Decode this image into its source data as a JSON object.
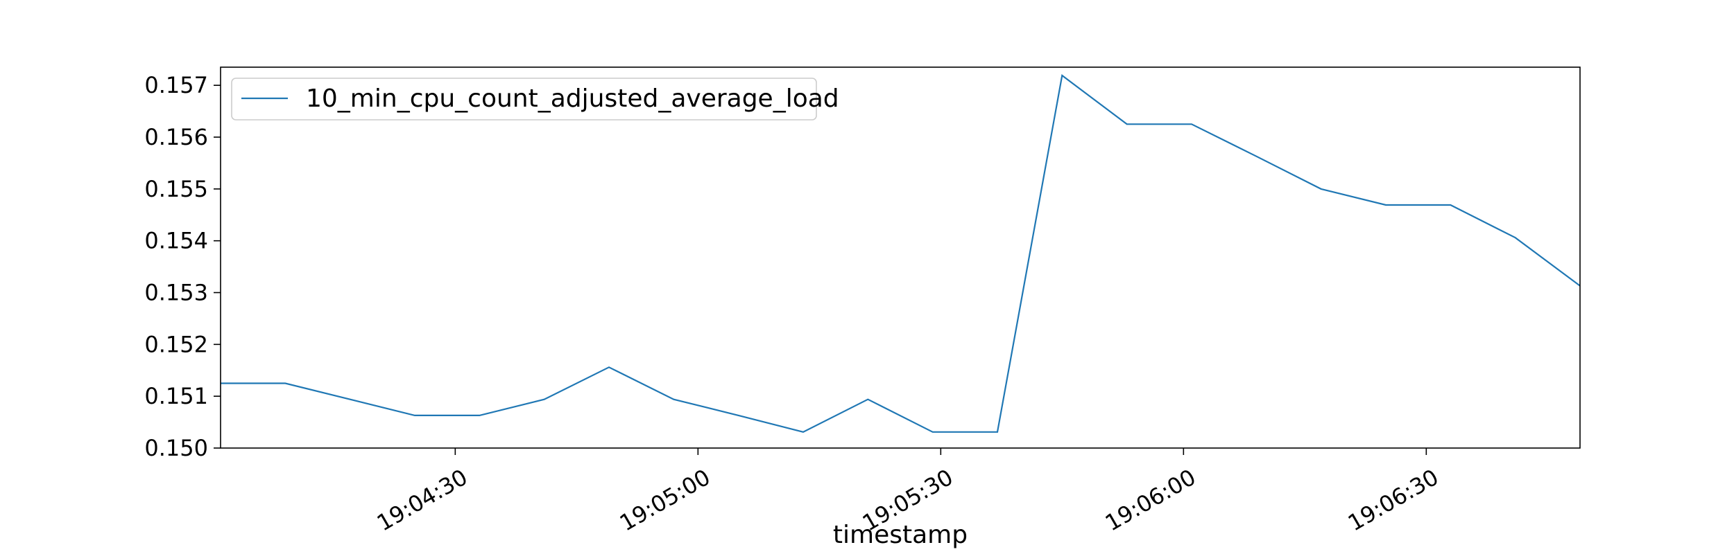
{
  "chart_data": {
    "type": "line",
    "title": "",
    "xlabel": "timestamp",
    "ylabel": "",
    "x": [
      "19:04:01",
      "19:04:09",
      "19:04:17",
      "19:04:25",
      "19:04:33",
      "19:04:41",
      "19:04:49",
      "19:04:57",
      "19:05:05",
      "19:05:13",
      "19:05:21",
      "19:05:29",
      "19:05:37",
      "19:05:45",
      "19:05:53",
      "19:06:01",
      "19:06:09",
      "19:06:17",
      "19:06:25",
      "19:06:33",
      "19:06:41",
      "19:06:49"
    ],
    "series": [
      {
        "name": "10_min_cpu_count_adjusted_average_load",
        "color": "#1f77b4",
        "values": [
          0.15125,
          0.15125,
          0.15094,
          0.15063,
          0.15063,
          0.15094,
          0.15156,
          0.15094,
          0.15063,
          0.15031,
          0.15094,
          0.15031,
          0.15031,
          0.15719,
          0.15625,
          0.15625,
          0.15563,
          0.155,
          0.15469,
          0.15469,
          0.15406,
          0.15313
        ]
      }
    ],
    "x_range": [
      "19:04:01",
      "19:06:49"
    ],
    "x_ticks": [
      "19:04:30",
      "19:05:00",
      "19:05:30",
      "19:06:00",
      "19:06:30"
    ],
    "ylim": [
      0.15,
      0.15735
    ],
    "y_ticks": [
      "0.150",
      "0.151",
      "0.152",
      "0.153",
      "0.154",
      "0.155",
      "0.156",
      "0.157"
    ],
    "grid": false,
    "legend_position": "upper-left"
  }
}
